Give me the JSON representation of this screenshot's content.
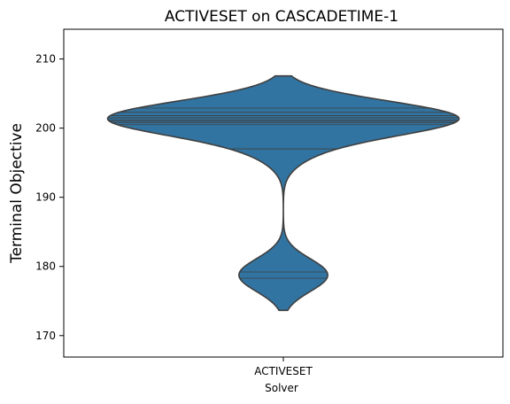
{
  "chart_data": {
    "type": "violin",
    "title": "ACTIVESET on CASCADETIME-1",
    "xlabel": "Solver",
    "ylabel": "Terminal Objective",
    "categories": [
      "ACTIVESET"
    ],
    "ylim": [
      166.9,
      214.3
    ],
    "yticks": [
      170,
      180,
      190,
      200,
      210
    ],
    "ytick_labels": [
      "170",
      "180",
      "190",
      "200",
      "210"
    ],
    "grid": false,
    "legend": "none",
    "color": "#3274a1",
    "edge_color": "#3f3f3f",
    "series": [
      {
        "values": [
          178.3,
          179.2,
          197.0,
          200.5,
          200.8,
          201.0,
          201.2,
          201.5,
          201.8,
          202.3,
          202.9
        ]
      }
    ]
  }
}
